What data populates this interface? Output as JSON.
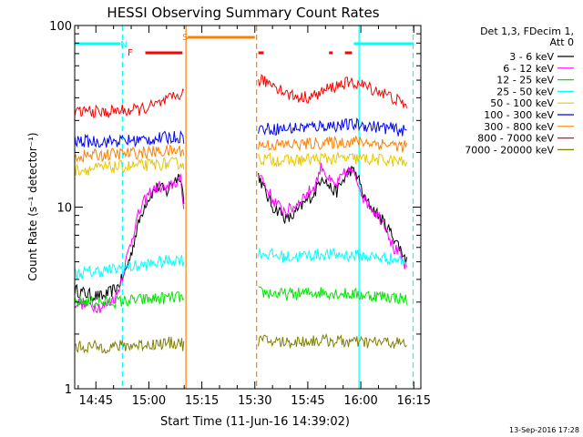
{
  "chart_data": {
    "type": "line",
    "title": "HESSI Observing Summary Count Rates",
    "xlabel": "Start Time (11-Jun-16 14:39:02)",
    "ylabel": "Count Rate (s⁻¹ detector⁻¹)",
    "x_unit": "minutes since 14:39:02",
    "xlim": [
      0,
      98
    ],
    "ylim": [
      1,
      100
    ],
    "yscale": "log",
    "x_ticks": [
      {
        "label": "14:45",
        "value": 6
      },
      {
        "label": "15:00",
        "value": 21
      },
      {
        "label": "15:15",
        "value": 36
      },
      {
        "label": "15:30",
        "value": 51
      },
      {
        "label": "15:45",
        "value": 66
      },
      {
        "label": "16:00",
        "value": 81
      },
      {
        "label": "16:15",
        "value": 96
      }
    ],
    "y_ticks": [
      {
        "label": "1",
        "value": 1
      },
      {
        "label": "10",
        "value": 10
      },
      {
        "label": "100",
        "value": 100
      }
    ],
    "legend_header": [
      "Det 1,3, FDecim 1,",
      "Att 0"
    ],
    "legend_position": "right",
    "series": [
      {
        "name": "3 - 6 keV",
        "color": "#000000",
        "x": [
          0,
          4,
          8,
          10,
          12,
          14,
          16,
          18,
          20,
          22,
          24,
          26,
          28,
          30,
          31,
          52,
          54,
          56,
          58,
          60,
          62,
          64,
          66,
          68,
          70,
          72,
          74,
          76,
          78,
          80,
          82,
          84,
          86,
          88,
          90,
          92,
          94
        ],
        "values": [
          3.5,
          3.3,
          3.2,
          3.4,
          3.6,
          4.2,
          5.5,
          8,
          10.5,
          12,
          13,
          12,
          14,
          15,
          10,
          15,
          12,
          10,
          9.5,
          8.5,
          9,
          10,
          11,
          12,
          15,
          13,
          12,
          14,
          16,
          15,
          11,
          10,
          9,
          8,
          7,
          6,
          5
        ]
      },
      {
        "name": "6 - 12 keV",
        "color": "#ff00ff",
        "x": [
          0,
          4,
          8,
          10,
          12,
          14,
          16,
          18,
          20,
          22,
          24,
          26,
          28,
          30,
          31,
          52,
          54,
          56,
          58,
          60,
          62,
          64,
          66,
          68,
          70,
          72,
          74,
          76,
          78,
          80,
          82,
          84,
          86,
          88,
          90,
          92,
          94
        ],
        "values": [
          3.0,
          2.9,
          2.8,
          3.0,
          3.3,
          4.5,
          6.5,
          9,
          11,
          12.5,
          13,
          12.5,
          13.5,
          14,
          9,
          16,
          13,
          11,
          10,
          9.5,
          10,
          11,
          12,
          13,
          17,
          14,
          13,
          15,
          16,
          14,
          11,
          10,
          9,
          8,
          6,
          5.5,
          4.5
        ]
      },
      {
        "name": "12 - 25 keV",
        "color": "#00e600",
        "x": [
          0,
          10,
          20,
          30,
          31,
          52,
          60,
          70,
          80,
          90,
          94
        ],
        "values": [
          3.0,
          3.0,
          3.1,
          3.2,
          3.0,
          3.4,
          3.3,
          3.4,
          3.3,
          3.2,
          3.1
        ]
      },
      {
        "name": "25 - 50 keV",
        "color": "#00ffff",
        "x": [
          0,
          10,
          20,
          30,
          31,
          52,
          60,
          70,
          80,
          90,
          94
        ],
        "values": [
          4.3,
          4.5,
          4.8,
          5.2,
          5.0,
          5.6,
          5.3,
          5.5,
          5.4,
          5.2,
          5.0
        ]
      },
      {
        "name": "50 - 100 keV",
        "color": "#e6c800",
        "x": [
          0,
          10,
          20,
          30,
          31,
          52,
          60,
          70,
          80,
          90,
          94
        ],
        "values": [
          16,
          16.5,
          17,
          17.5,
          17,
          18.5,
          18,
          18.5,
          18.5,
          18,
          17.5
        ]
      },
      {
        "name": "100 - 300 keV",
        "color": "#0000ff",
        "x": [
          0,
          10,
          20,
          30,
          31,
          52,
          60,
          70,
          80,
          90,
          94
        ],
        "values": [
          23,
          23,
          23.5,
          24.5,
          24,
          27,
          27,
          28,
          28.5,
          27,
          26
        ]
      },
      {
        "name": "300 - 800 keV",
        "color": "#ff8000",
        "x": [
          0,
          10,
          20,
          30,
          31,
          52,
          60,
          70,
          80,
          90,
          94
        ],
        "values": [
          19,
          19.5,
          20,
          20.5,
          20,
          22,
          22,
          22.5,
          23,
          22,
          21.5
        ]
      },
      {
        "name": "800 - 7000 keV",
        "color": "#ff0000",
        "x": [
          0,
          4,
          8,
          12,
          16,
          20,
          24,
          28,
          30,
          31,
          52,
          56,
          60,
          64,
          68,
          72,
          76,
          80,
          84,
          88,
          92,
          94
        ],
        "values": [
          33,
          34,
          33,
          34,
          34,
          35,
          37,
          40,
          42,
          42,
          50,
          48,
          42,
          40,
          41,
          45,
          48,
          48,
          45,
          42,
          38,
          36
        ]
      },
      {
        "name": "7000 - 20000 keV",
        "color": "#808000",
        "x": [
          0,
          10,
          20,
          30,
          31,
          52,
          60,
          70,
          80,
          90,
          94
        ],
        "values": [
          1.7,
          1.7,
          1.75,
          1.8,
          1.7,
          1.85,
          1.8,
          1.85,
          1.8,
          1.8,
          1.75
        ]
      }
    ],
    "annotations": [
      {
        "label": "N",
        "color": "#00ffff",
        "x": 14
      },
      {
        "label": "F",
        "color": "#ff0000",
        "x": 16
      },
      {
        "label": "S",
        "color": "#ff8000",
        "x": 31.5
      }
    ],
    "state_bars": [
      {
        "name": "night",
        "color": "#00ffff",
        "segments": [
          [
            0,
            13
          ],
          [
            79,
            96
          ]
        ]
      },
      {
        "name": "flare",
        "color": "#ff0000",
        "segments": [
          [
            20,
            30.5
          ],
          [
            52,
            53.5
          ],
          [
            72,
            73
          ],
          [
            76.5,
            78.5
          ]
        ]
      },
      {
        "name": "saa",
        "color": "#ff8000",
        "segments": [
          [
            32,
            51
          ]
        ]
      }
    ],
    "vlines": [
      {
        "color": "#00ffff",
        "style": "dashed",
        "x": 13.5
      },
      {
        "color": "#00ffff",
        "style": "solid",
        "x": 80.5
      },
      {
        "color": "#00ffff",
        "style": "dashed",
        "x": 95.8
      },
      {
        "color": "#ff8000",
        "style": "solid",
        "x": 31.5
      },
      {
        "color": "#ff8000",
        "style": "dashed",
        "x": 51.5
      }
    ]
  },
  "footer": {
    "timestamp": "13-Sep-2016 17:28"
  }
}
